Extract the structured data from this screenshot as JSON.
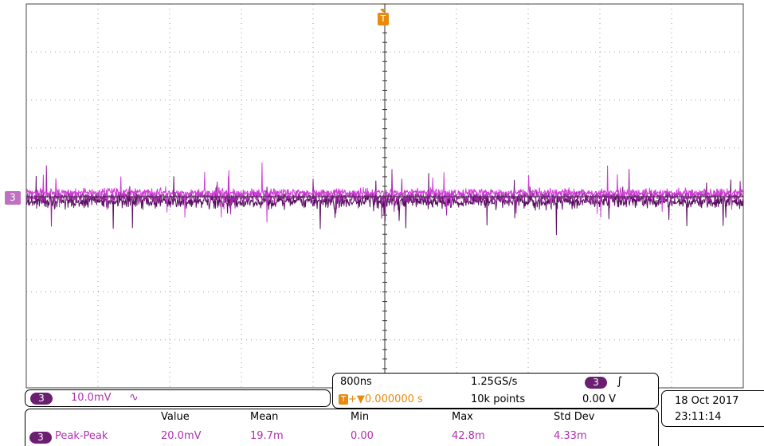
{
  "screen": {
    "channel_marker": "3",
    "trigger_marker": "T",
    "colors": {
      "trace_light": "#d03cd8",
      "trace_dark": "#5a1060",
      "trace_mid": "#9c24a4",
      "grid": "#9a9a9a",
      "trigger": "#e88a0e",
      "badge": "#6a1f70"
    }
  },
  "channel": {
    "number": "3",
    "scale": "10.0mV",
    "coupling_icon": "∿"
  },
  "timebase": {
    "time_per_div": "800ns",
    "sample_rate": "1.25GS/s",
    "trigger_icon_label": "T",
    "trigger_position": "+▼0.000000 s",
    "record_length": "10k points",
    "trigger_channel": "3",
    "trigger_slope": "∫",
    "trigger_level": "0.00 V"
  },
  "measurement": {
    "headers": [
      "Value",
      "Mean",
      "Min",
      "Max",
      "Std Dev"
    ],
    "channel": "3",
    "name": "Peak-Peak",
    "values": [
      "20.0mV",
      "19.7m",
      "0.00",
      "42.8m",
      "4.33m"
    ]
  },
  "datetime": {
    "date": "18 Oct  2017",
    "time": "23:11:14"
  }
}
